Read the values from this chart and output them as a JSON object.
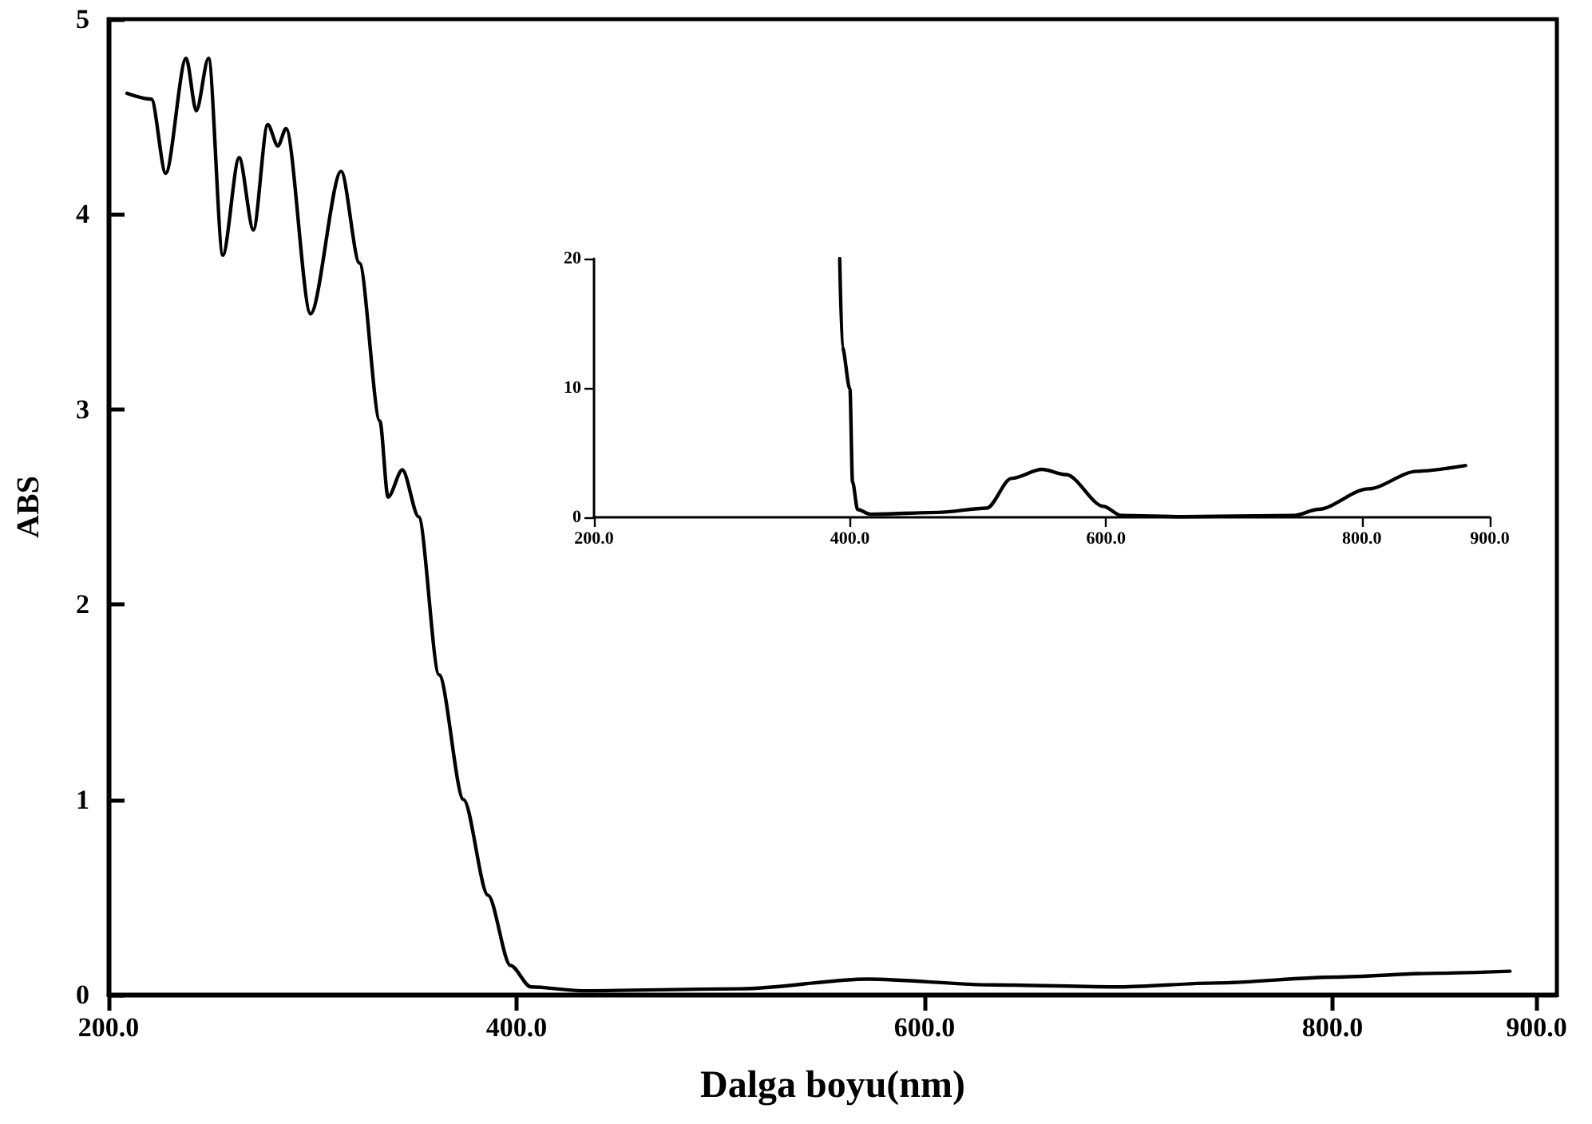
{
  "chart_data": [
    {
      "type": "line",
      "xlabel": "Dalga boyu(nm)",
      "ylabel": "ABS",
      "xlim": [
        200,
        910
      ],
      "ylim": [
        0,
        5
      ],
      "xticks": [
        {
          "value": 200,
          "label": "200.0"
        },
        {
          "value": 400,
          "label": "400.0"
        },
        {
          "value": 600,
          "label": "600.0"
        },
        {
          "value": 800,
          "label": "800.0"
        },
        {
          "value": 900,
          "label": "900.0"
        }
      ],
      "yticks": [
        0,
        1,
        2,
        3,
        4,
        5
      ],
      "grid": false,
      "marker": "none",
      "line_style": "solid",
      "series": [
        {
          "color": "#000000",
          "x": [
            209,
            221,
            228,
            238,
            243,
            249,
            256,
            264,
            271,
            278,
            283,
            287,
            299,
            314,
            323,
            333,
            337,
            344,
            352,
            362,
            374,
            386,
            397,
            407,
            432,
            510,
            572,
            634,
            696,
            743,
            801,
            852,
            887
          ],
          "values": [
            4.62,
            4.59,
            4.21,
            4.8,
            4.53,
            4.8,
            3.79,
            4.29,
            3.92,
            4.46,
            4.35,
            4.44,
            3.49,
            4.22,
            3.75,
            2.94,
            2.55,
            2.69,
            2.45,
            1.64,
            1.0,
            0.51,
            0.15,
            0.04,
            0.02,
            0.03,
            0.08,
            0.05,
            0.04,
            0.06,
            0.09,
            0.11,
            0.12
          ]
        }
      ]
    },
    {
      "type": "line",
      "xlim": [
        200,
        900
      ],
      "ylim": [
        0,
        20
      ],
      "xticks": [
        {
          "value": 200,
          "label": "200.0"
        },
        {
          "value": 400,
          "label": "400.0"
        },
        {
          "value": 600,
          "label": "600.0"
        },
        {
          "value": 800,
          "label": "800.0"
        },
        {
          "value": 900,
          "label": "900.0"
        }
      ],
      "yticks": [
        0,
        10,
        20
      ],
      "grid": false,
      "marker": "none",
      "line_style": "solid",
      "series": [
        {
          "color": "#000000",
          "x": [
            392,
            394,
            400,
            402,
            406,
            416,
            469,
            507,
            526,
            550,
            569,
            598,
            612,
            660,
            747,
            766,
            805,
            843,
            881
          ],
          "values": [
            20,
            13.2,
            9.9,
            2.75,
            0.6,
            0.24,
            0.38,
            0.71,
            3.0,
            3.7,
            3.3,
            0.85,
            0.14,
            0.05,
            0.14,
            0.62,
            2.2,
            3.56,
            4.0
          ]
        }
      ]
    }
  ]
}
